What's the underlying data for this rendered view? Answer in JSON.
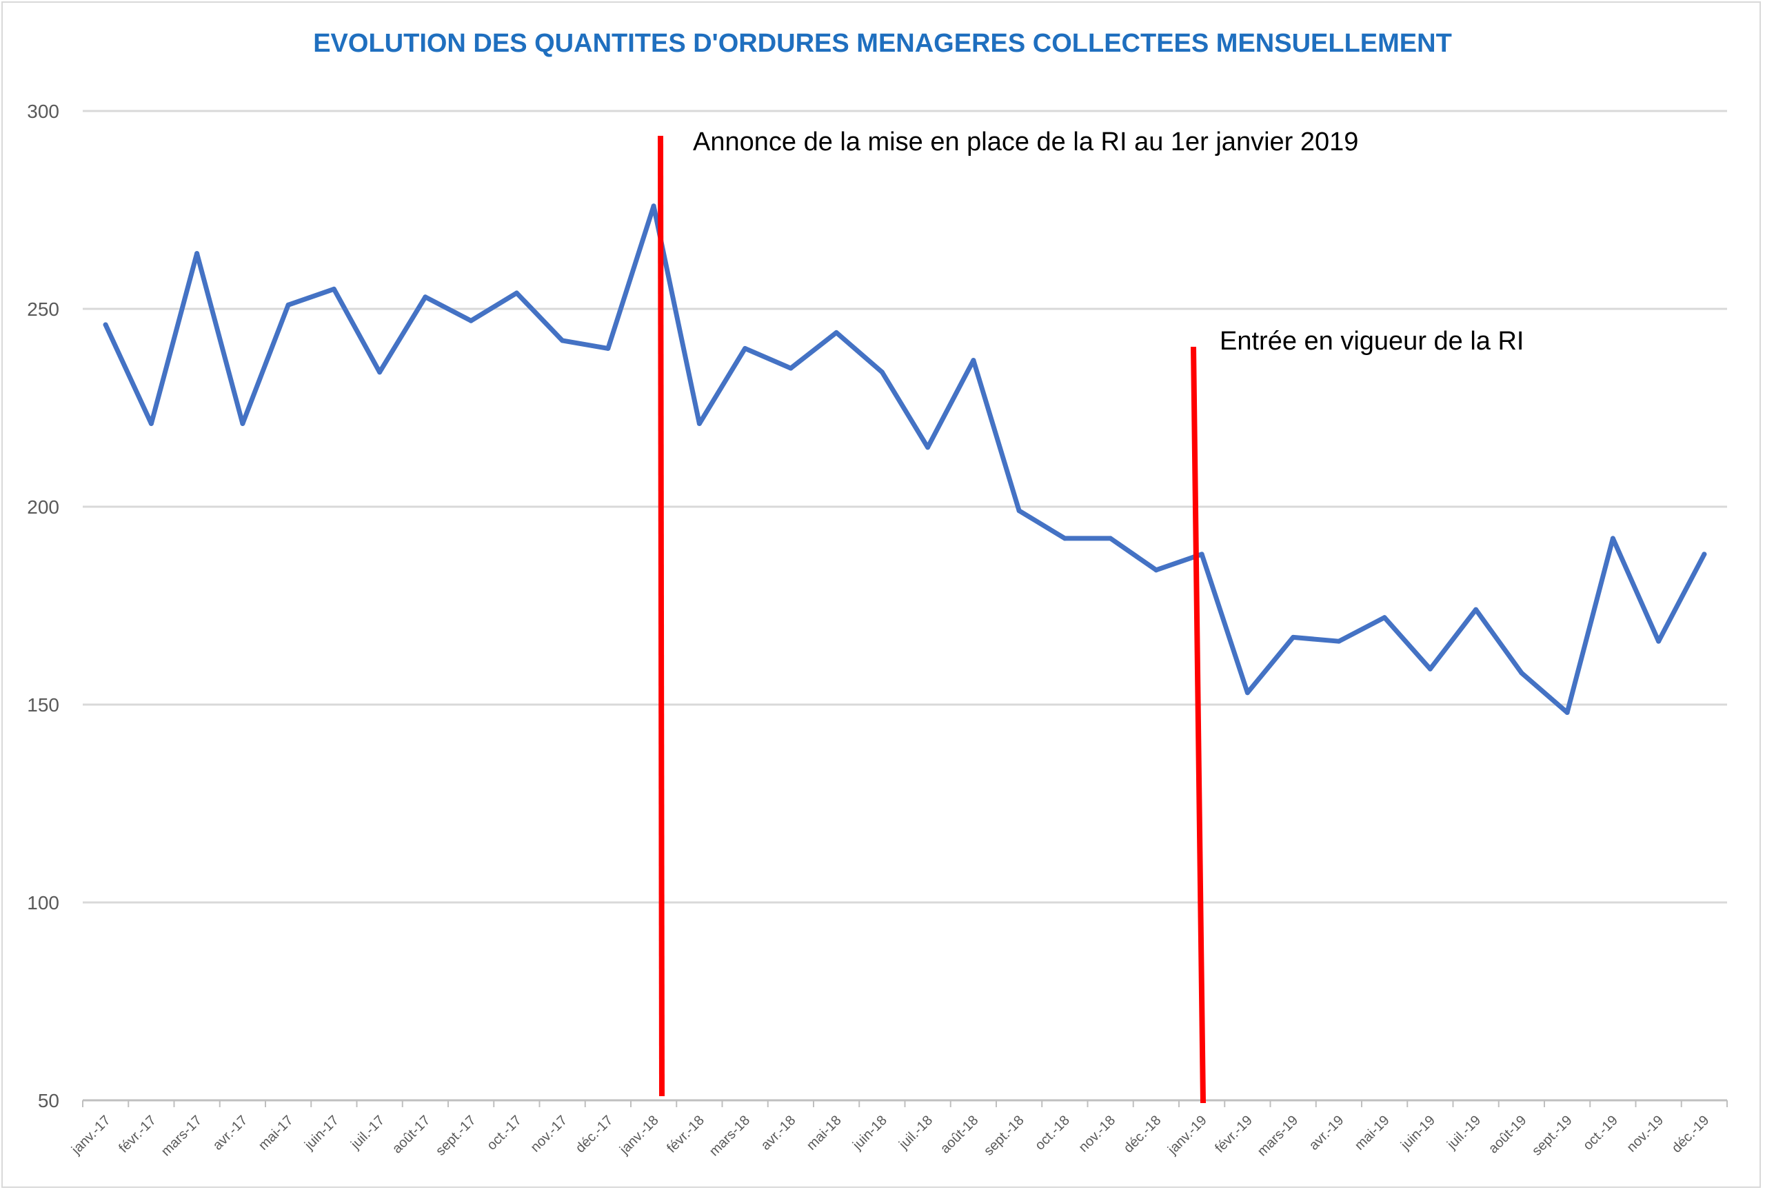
{
  "chart_data": {
    "type": "line",
    "title": "EVOLUTION DES QUANTITES D'ORDURES MENAGERES COLLECTEES MENSUELLEMENT",
    "xlabel": "",
    "ylabel": "",
    "ylim": [
      50,
      300
    ],
    "yticks": [
      50,
      100,
      150,
      200,
      250,
      300
    ],
    "grid": true,
    "legend": "none",
    "categories": [
      "janv.-17",
      "févr.-17",
      "mars-17",
      "avr.-17",
      "mai-17",
      "juin-17",
      "juil.-17",
      "août-17",
      "sept.-17",
      "oct.-17",
      "nov.-17",
      "déc.-17",
      "janv.-18",
      "févr.-18",
      "mars-18",
      "avr.-18",
      "mai-18",
      "juin-18",
      "juil.-18",
      "août-18",
      "sept.-18",
      "oct.-18",
      "nov.-18",
      "déc.-18",
      "janv.-19",
      "févr.-19",
      "mars-19",
      "avr.-19",
      "mai-19",
      "juin-19",
      "juil.-19",
      "août-19",
      "sept.-19",
      "oct.-19",
      "nov.-19",
      "déc.-19"
    ],
    "series": [
      {
        "color": "#4472c4",
        "values": [
          246,
          221,
          264,
          221,
          251,
          255,
          234,
          253,
          247,
          254,
          242,
          240,
          276,
          221,
          240,
          235,
          244,
          234,
          215,
          237,
          199,
          192,
          192,
          184,
          188,
          153,
          167,
          166,
          172,
          159,
          174,
          158,
          148,
          192,
          166,
          188
        ]
      }
    ],
    "annotations": [
      {
        "text": "Annonce de la mise en place de la RI au 1er janvier 2019",
        "x": "janv.-18",
        "color": "#ff0000"
      },
      {
        "text": "Entrée en vigueur de la RI",
        "x": "janv.-19",
        "color": "#ff0000"
      }
    ]
  }
}
